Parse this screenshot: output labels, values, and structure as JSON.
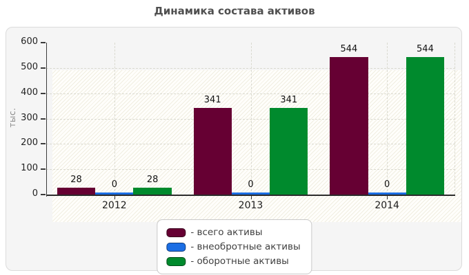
{
  "title": "Динамика состава активов",
  "chart_data": {
    "type": "bar",
    "title": "Динамика состава активов",
    "ylabel": "тыс.",
    "xlabel": "",
    "categories": [
      "2012",
      "2013",
      "2014"
    ],
    "series": [
      {
        "key": "total-assets",
        "name": "всего активы",
        "legend_label": "- всего активы",
        "color": "#660033",
        "values": [
          28,
          341,
          544
        ]
      },
      {
        "key": "non-current-assets",
        "name": "внеобротные активы",
        "legend_label": "- внеобротные активы",
        "color": "#1b6ee4",
        "values": [
          0,
          0,
          0
        ]
      },
      {
        "key": "current-assets",
        "name": "оборотные активы",
        "legend_label": "- оборотные активы",
        "color": "#008a2d",
        "values": [
          28,
          341,
          544
        ]
      }
    ],
    "ylim": [
      0,
      600
    ],
    "yticks": [
      0,
      100,
      200,
      300,
      400,
      500,
      600
    ],
    "bar_value_labels": true,
    "grid": true,
    "grid_style": "dashed",
    "legend_position": "bottom-center",
    "colors": {
      "panel_bg": "#f5f5f5",
      "panel_border": "#dbdbdb",
      "plot_hatch": "#f0eee1",
      "grid": "#d9d9cf",
      "axis": "#2b2b2b",
      "title_text": "#4f4f4f",
      "tick_text": "#222222",
      "value_text": "#111111",
      "legend_text": "#3f3f3f",
      "ylabel_text": "#8a8a8a"
    }
  }
}
